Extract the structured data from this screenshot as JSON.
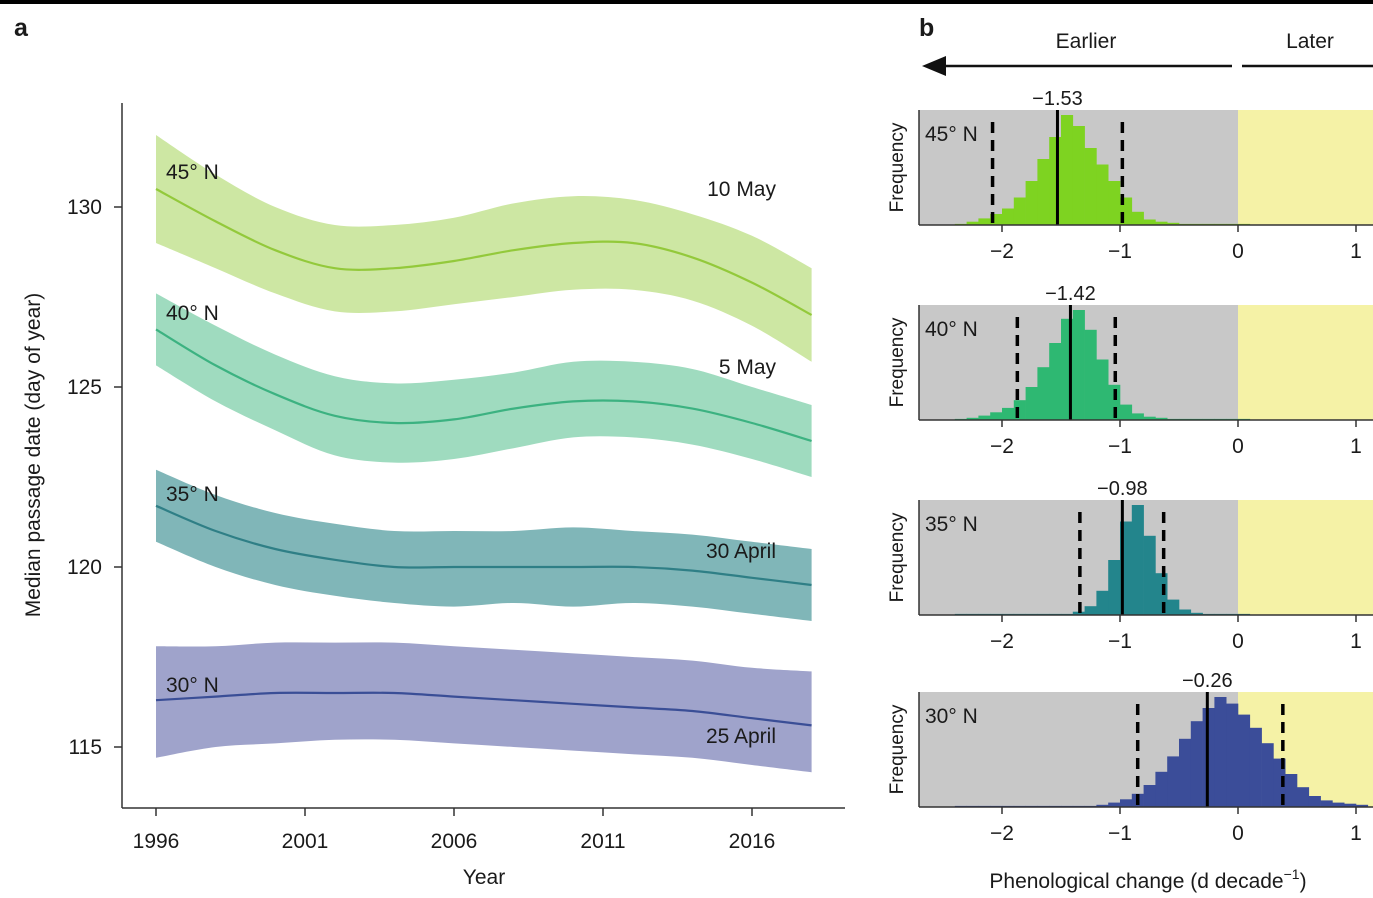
{
  "colors": {
    "gray_bg": "#c8c8c8",
    "yellow_bg": "#f5f2a6",
    "axis": "#333333"
  },
  "panel_a": {
    "letter": "a",
    "ylabel": "Median passage date (day of year)",
    "xlabel": "Year",
    "x_ticks": [
      "1996",
      "2001",
      "2006",
      "2011",
      "2016"
    ],
    "y_ticks": [
      "115",
      "120",
      "125",
      "130"
    ]
  },
  "panel_b": {
    "letter": "b",
    "earlier_label": "Earlier",
    "later_label": "Later",
    "ylabel": "Frequency",
    "xlabel_main": "Phenological change (d decade",
    "xlabel_sup": "−1",
    "xlabel_end": ")",
    "x_ticks": [
      "−2",
      "−1",
      "0",
      "1"
    ]
  },
  "chart_data": [
    {
      "type": "line",
      "panel": "a",
      "xlabel": "Year",
      "ylabel": "Median passage date (day of year)",
      "xlim": [
        1995,
        2019
      ],
      "ylim": [
        113.3,
        133.2
      ],
      "x_ticks": [
        1996,
        2001,
        2006,
        2011,
        2016
      ],
      "y_ticks": [
        115,
        120,
        125,
        130
      ],
      "series": [
        {
          "lat_label": "45° N",
          "date_label": "10 May",
          "color": "#93c93b",
          "band_color": "#cde7a3",
          "x": [
            1996,
            1998,
            2000,
            2002,
            2004,
            2006,
            2008,
            2010,
            2012,
            2014,
            2016,
            2018
          ],
          "y": [
            130.5,
            129.6,
            128.8,
            128.3,
            128.3,
            128.5,
            128.8,
            129.0,
            129.0,
            128.6,
            127.9,
            127.0
          ],
          "upper": [
            132.0,
            130.9,
            130.0,
            129.5,
            129.5,
            129.7,
            130.1,
            130.3,
            130.2,
            129.8,
            129.2,
            128.3
          ],
          "lower": [
            129.0,
            128.3,
            127.6,
            127.1,
            127.1,
            127.3,
            127.5,
            127.7,
            127.7,
            127.4,
            126.7,
            125.7
          ]
        },
        {
          "lat_label": "40° N",
          "date_label": "5 May",
          "color": "#3cb281",
          "band_color": "#9fdbbf",
          "x": [
            1996,
            1998,
            2000,
            2002,
            2004,
            2006,
            2008,
            2010,
            2012,
            2014,
            2016,
            2018
          ],
          "y": [
            126.6,
            125.6,
            124.8,
            124.2,
            124.0,
            124.1,
            124.4,
            124.6,
            124.6,
            124.4,
            124.0,
            123.5
          ],
          "upper": [
            127.6,
            126.7,
            125.9,
            125.3,
            125.1,
            125.2,
            125.4,
            125.7,
            125.7,
            125.5,
            125.0,
            124.5
          ],
          "lower": [
            125.6,
            124.6,
            123.8,
            123.1,
            122.9,
            123.0,
            123.3,
            123.6,
            123.6,
            123.4,
            123.0,
            122.5
          ]
        },
        {
          "lat_label": "35° N",
          "date_label": "30 April",
          "color": "#2f7f86",
          "band_color": "#80b6b8",
          "x": [
            1996,
            1998,
            2000,
            2002,
            2004,
            2006,
            2008,
            2010,
            2012,
            2014,
            2016,
            2018
          ],
          "y": [
            121.7,
            121.0,
            120.5,
            120.2,
            120.0,
            120.0,
            120.0,
            120.0,
            120.0,
            119.9,
            119.7,
            119.5
          ],
          "upper": [
            122.7,
            122.0,
            121.5,
            121.2,
            121.0,
            121.0,
            121.0,
            121.1,
            121.0,
            120.9,
            120.7,
            120.5
          ],
          "lower": [
            120.7,
            120.0,
            119.5,
            119.2,
            119.0,
            118.9,
            119.0,
            118.9,
            119.0,
            118.9,
            118.7,
            118.5
          ]
        },
        {
          "lat_label": "30° N",
          "date_label": "25 April",
          "color": "#3a4e96",
          "band_color": "#9fa3cb",
          "x": [
            1996,
            1998,
            2000,
            2002,
            2004,
            2006,
            2008,
            2010,
            2012,
            2014,
            2016,
            2018
          ],
          "y": [
            116.3,
            116.4,
            116.5,
            116.5,
            116.5,
            116.4,
            116.3,
            116.2,
            116.1,
            116.0,
            115.8,
            115.6
          ],
          "upper": [
            117.8,
            117.8,
            117.9,
            117.9,
            117.9,
            117.8,
            117.7,
            117.6,
            117.5,
            117.4,
            117.2,
            117.1
          ],
          "lower": [
            114.7,
            115.0,
            115.1,
            115.2,
            115.2,
            115.1,
            115.0,
            114.9,
            114.8,
            114.7,
            114.5,
            114.3
          ]
        }
      ]
    },
    {
      "type": "bar",
      "panel": "b",
      "xlabel": "Phenological change (d decade−1)",
      "ylabel": "Frequency",
      "xlim": [
        -2.6,
        1.15
      ],
      "x_ticks": [
        -2,
        -1,
        0,
        1
      ],
      "bin_width": 0.1,
      "histograms": [
        {
          "lat_label": "45° N",
          "color": "#7ed321",
          "median": -1.53,
          "median_label": "−1.53",
          "ci": [
            -2.08,
            -0.98
          ],
          "bin_start": -2.4,
          "counts": [
            1,
            3,
            6,
            10,
            15,
            25,
            40,
            60,
            80,
            100,
            90,
            70,
            55,
            40,
            25,
            12,
            5,
            3,
            2,
            1,
            1,
            1,
            1,
            1,
            1
          ]
        },
        {
          "lat_label": "40° N",
          "color": "#2eb872",
          "median": -1.42,
          "median_label": "−1.42",
          "ci": [
            -1.87,
            -1.04
          ],
          "bin_start": -2.4,
          "counts": [
            1,
            2,
            4,
            7,
            11,
            18,
            30,
            48,
            70,
            92,
            100,
            82,
            55,
            32,
            14,
            6,
            3,
            2,
            1,
            1,
            1,
            1,
            1,
            1,
            1
          ]
        },
        {
          "lat_label": "35° N",
          "color": "#23858c",
          "median": -0.98,
          "median_label": "−0.98",
          "ci": [
            -1.34,
            -0.63
          ],
          "bin_start": -2.4,
          "counts": [
            1,
            1,
            1,
            1,
            1,
            1,
            1,
            1,
            1,
            1,
            3,
            8,
            22,
            50,
            85,
            100,
            72,
            38,
            14,
            5,
            2,
            1,
            1,
            1,
            1
          ]
        },
        {
          "lat_label": "30° N",
          "color": "#3b4d99",
          "median": -0.26,
          "median_label": "−0.26",
          "ci": [
            -0.85,
            0.38
          ],
          "bin_start": -2.4,
          "counts": [
            1,
            1,
            1,
            1,
            1,
            1,
            1,
            1,
            1,
            1,
            1,
            1,
            2,
            4,
            7,
            12,
            20,
            32,
            46,
            62,
            78,
            90,
            100,
            94,
            84,
            72,
            58,
            44,
            30,
            18,
            10,
            6,
            4,
            3,
            2
          ]
        }
      ]
    }
  ]
}
